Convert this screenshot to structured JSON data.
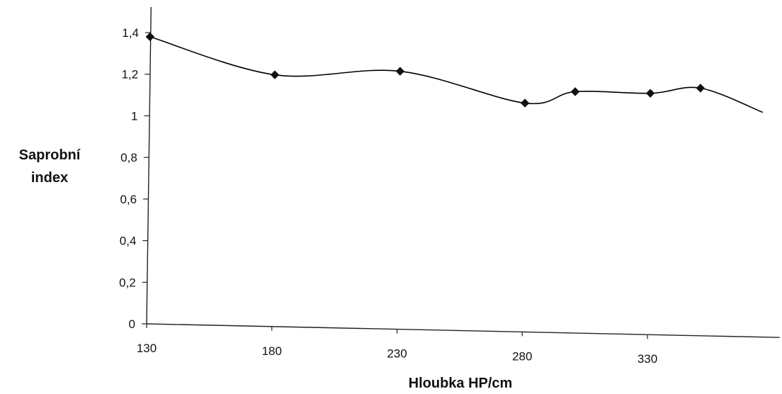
{
  "chart_data": {
    "type": "line",
    "title": "",
    "xlabel": "Hloubka HP/cm",
    "ylabel": [
      "Saprobní",
      "index"
    ],
    "xlim": [
      130,
      380
    ],
    "ylim": [
      0,
      1.5
    ],
    "x_ticks": [
      130,
      180,
      230,
      280,
      330
    ],
    "x_tick_labels": [
      "130",
      "180",
      "230",
      "280",
      "330"
    ],
    "y_ticks": [
      0,
      0.2,
      0.4,
      0.6,
      0.8,
      1,
      1.2,
      1.4
    ],
    "y_tick_labels": [
      "0",
      "0,2",
      "0,4",
      "0,6",
      "0,8",
      "1",
      "1,2",
      "1,4"
    ],
    "grid": false,
    "legend": "none",
    "line_color": "#000000",
    "marker": "diamond",
    "series": [
      {
        "x": [
          130,
          180,
          230,
          280,
          300,
          330,
          350,
          375
        ],
        "values": [
          1.38,
          1.21,
          1.24,
          1.1,
          1.16,
          1.16,
          1.19,
          1.08
        ]
      }
    ]
  }
}
